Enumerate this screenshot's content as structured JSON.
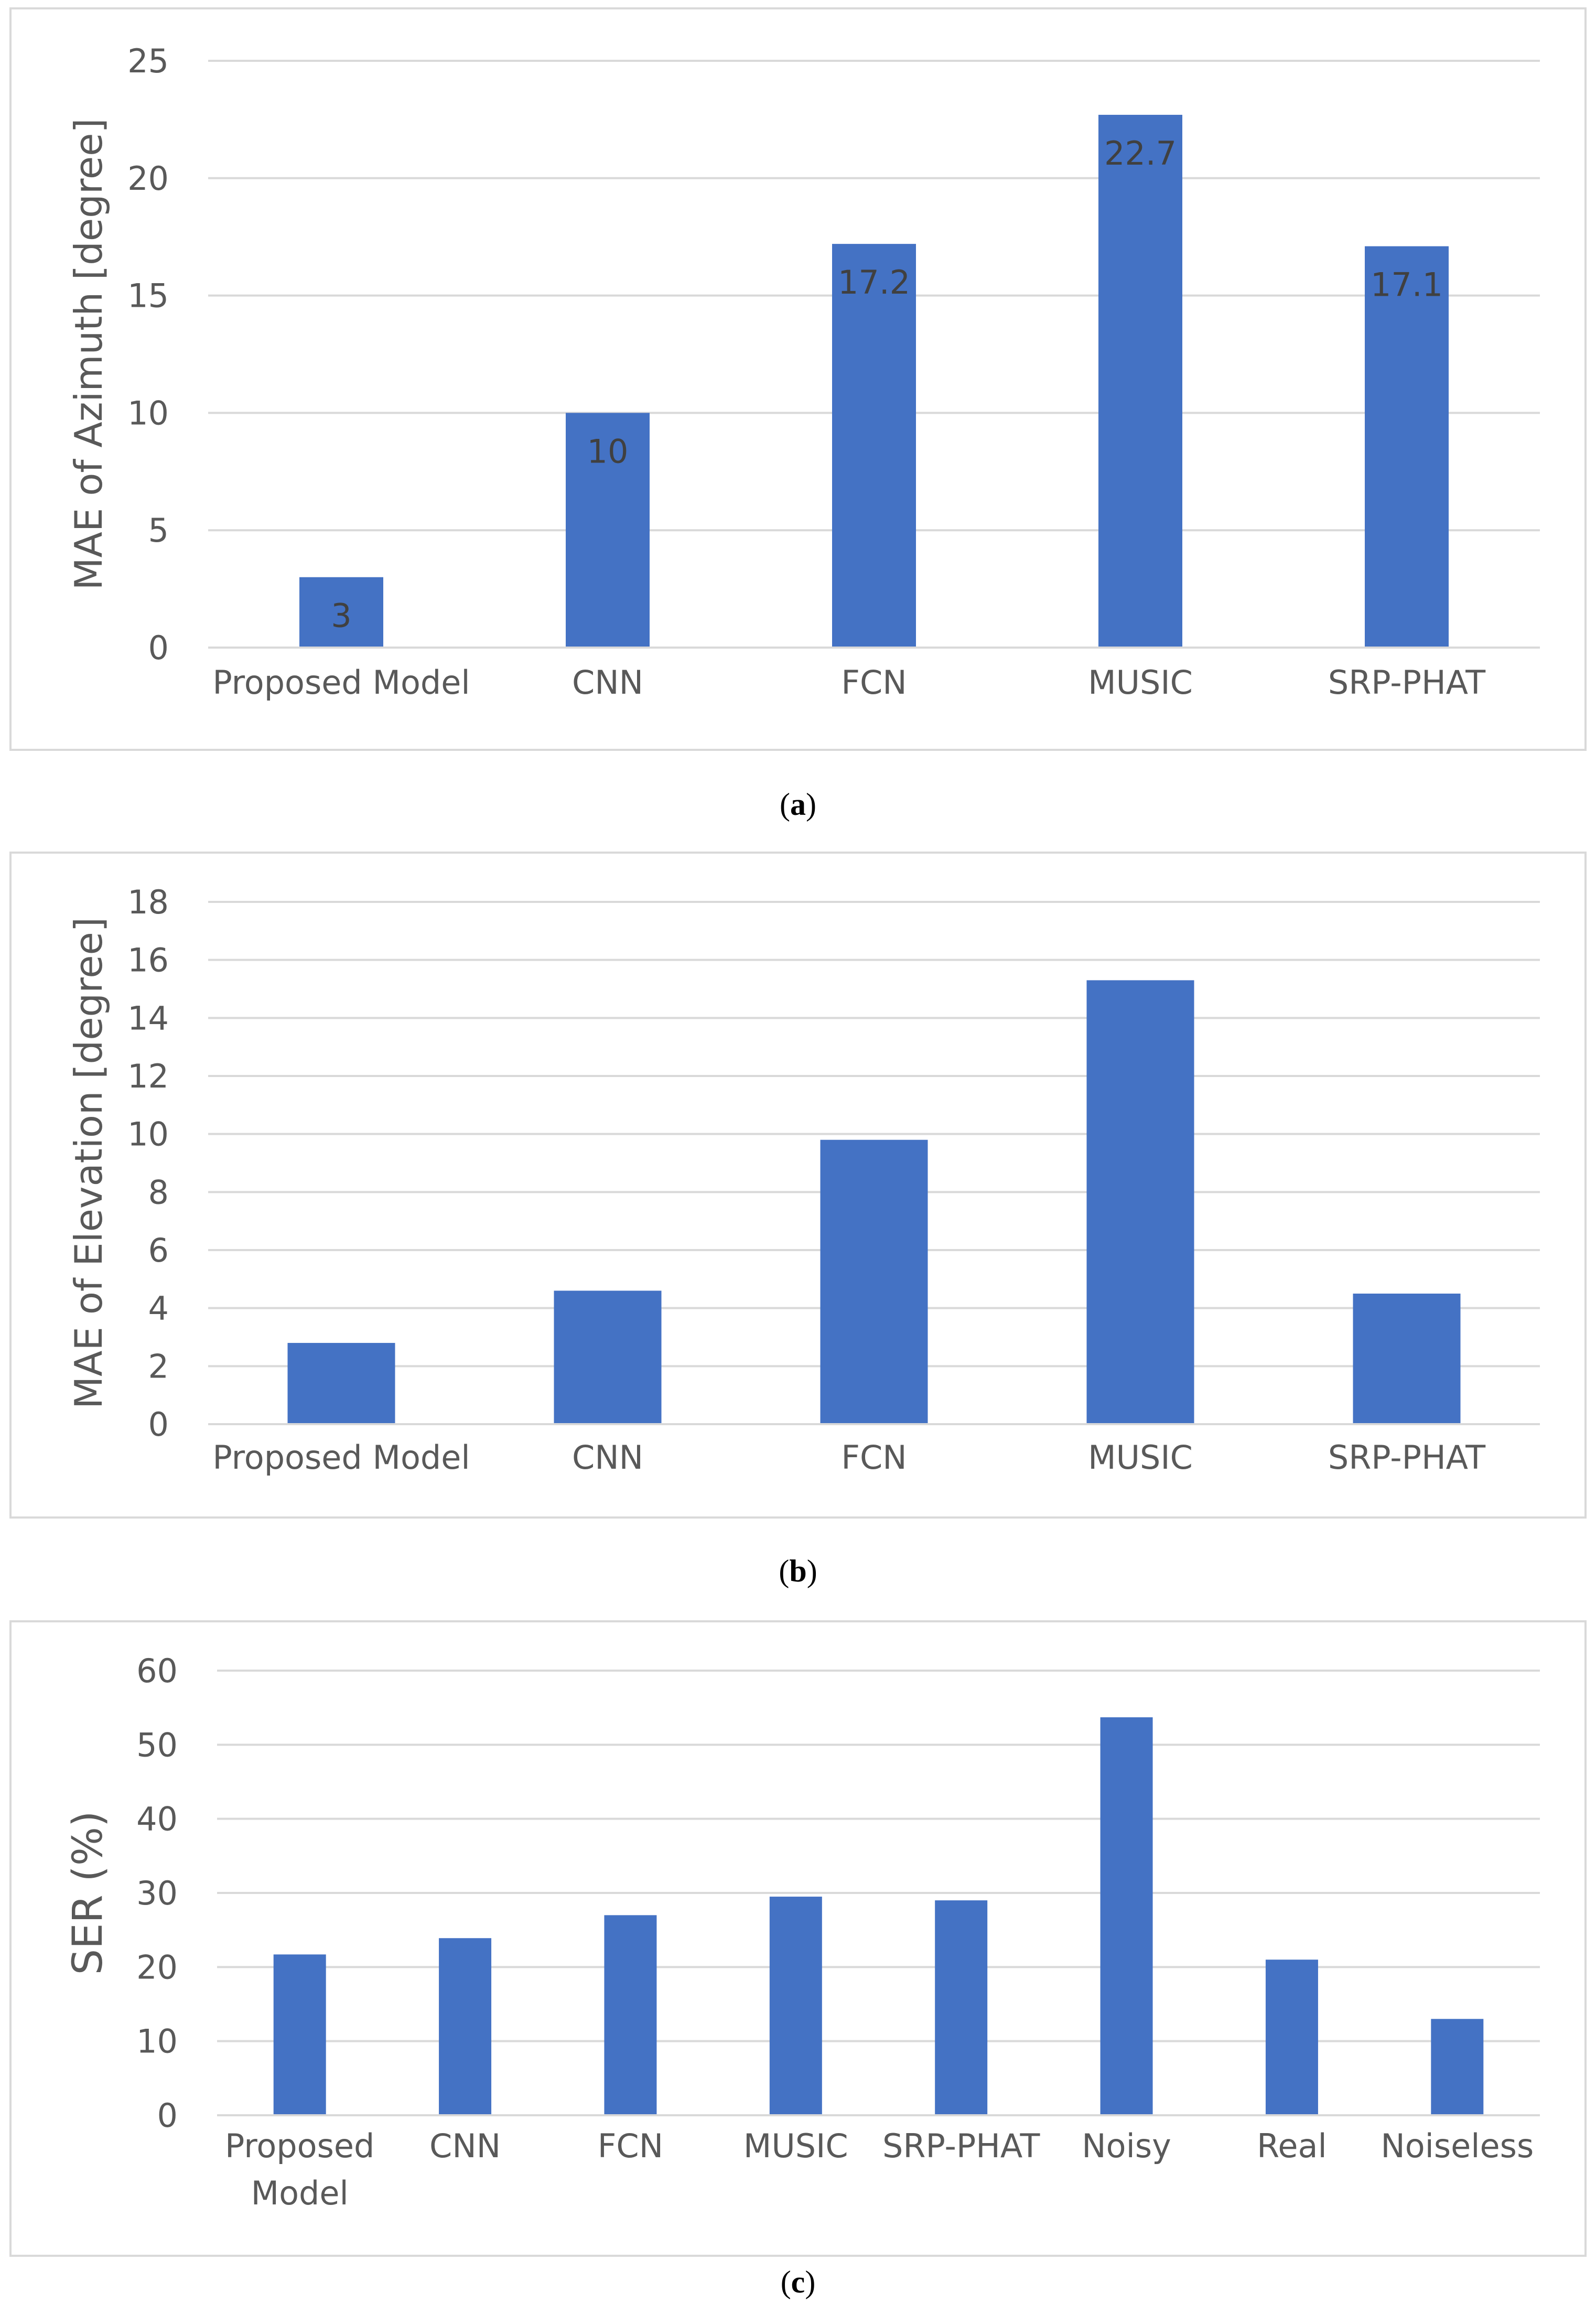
{
  "colors": {
    "bar": "#4472C4",
    "grid": "#d9d9d9",
    "tick_text": "#595959",
    "label_text": "#404040"
  },
  "chart_data": [
    {
      "type": "bar",
      "title": "",
      "xlabel": "",
      "ylabel": "MAE of Azimuth [degree]",
      "categories": [
        "Proposed Model",
        "CNN",
        "FCN",
        "MUSIC",
        "SRP-PHAT"
      ],
      "values": [
        3,
        10,
        17.2,
        22.7,
        17.1
      ],
      "data_labels": [
        "3",
        "10",
        "17.2",
        "22.7",
        "17.1"
      ],
      "ylim": [
        0,
        25
      ],
      "yticks": [
        "0",
        "5",
        "10",
        "15",
        "20",
        "25"
      ],
      "grid": true,
      "caption_letter": "a"
    },
    {
      "type": "bar",
      "title": "",
      "xlabel": "",
      "ylabel": "MAE of Elevation [degree]",
      "categories": [
        "Proposed Model",
        "CNN",
        "FCN",
        "MUSIC",
        "SRP-PHAT"
      ],
      "values": [
        2.8,
        4.6,
        9.8,
        15.3,
        4.5
      ],
      "data_labels": [],
      "ylim": [
        0,
        18
      ],
      "yticks": [
        "0",
        "2",
        "4",
        "6",
        "8",
        "10",
        "12",
        "14",
        "16",
        "18"
      ],
      "grid": true,
      "caption_letter": "b"
    },
    {
      "type": "bar",
      "title": "",
      "xlabel": "",
      "ylabel": "SER (%)",
      "categories": [
        "Proposed Model",
        "CNN",
        "FCN",
        "MUSIC",
        "SRP-PHAT",
        "Noisy",
        "Real",
        "Noiseless"
      ],
      "category_lines": [
        [
          "Proposed",
          "Model"
        ],
        [
          "CNN"
        ],
        [
          "FCN"
        ],
        [
          "MUSIC"
        ],
        [
          "SRP-PHAT"
        ],
        [
          "Noisy"
        ],
        [
          "Real"
        ],
        [
          "Noiseless"
        ]
      ],
      "values": [
        21.7,
        23.9,
        27,
        29.5,
        29,
        53.7,
        21,
        13
      ],
      "data_labels": [],
      "ylim": [
        0,
        60
      ],
      "yticks": [
        "0",
        "10",
        "20",
        "30",
        "40",
        "50",
        "60"
      ],
      "grid": true,
      "caption_letter": "c"
    }
  ]
}
